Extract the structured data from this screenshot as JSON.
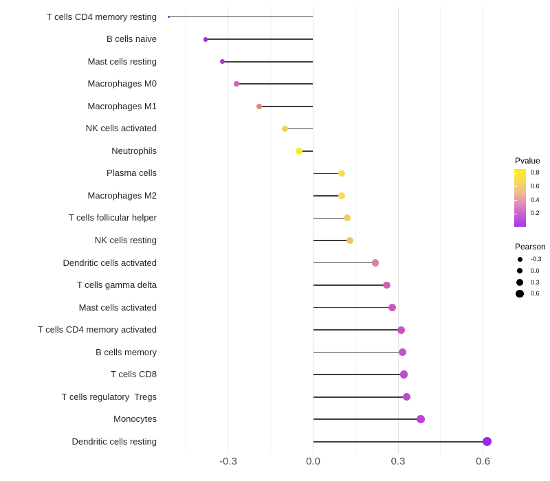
{
  "chart_data": {
    "type": "scatter",
    "variant": "lollipop",
    "title": "",
    "xlabel": "",
    "ylabel": "",
    "x_axis": {
      "ticks": [
        -0.3,
        0.0,
        0.3,
        0.6
      ],
      "tick_labels": [
        "-0.3",
        "0.0",
        "0.3",
        "0.6"
      ],
      "minor_ticks": [
        -0.45,
        -0.15,
        0.15,
        0.45
      ],
      "xlim": [
        -0.53,
        0.64
      ]
    },
    "grid": "vertical-only",
    "points": [
      {
        "label": "T cells CD4 memory resting",
        "pearson": -0.51,
        "pvalue_est": 0.02,
        "color": "#8A1FD4",
        "diameter": 3.6
      },
      {
        "label": "B cells naive",
        "pearson": -0.38,
        "pvalue_est": 0.07,
        "color": "#A92BD2",
        "diameter": 6.6
      },
      {
        "label": "Mast cells resting",
        "pearson": -0.32,
        "pvalue_est": 0.12,
        "color": "#B23BCD",
        "diameter": 7.4
      },
      {
        "label": "Macrophages M0",
        "pearson": -0.27,
        "pvalue_est": 0.3,
        "color": "#CC64AE",
        "diameter": 7.8
      },
      {
        "label": "Macrophages M1",
        "pearson": -0.19,
        "pvalue_est": 0.5,
        "color": "#DC8A7C",
        "diameter": 8.4
      },
      {
        "label": "NK cells activated",
        "pearson": -0.1,
        "pvalue_est": 0.7,
        "color": "#EFD257",
        "diameter": 9.0
      },
      {
        "label": "Neutrophils",
        "pearson": -0.05,
        "pvalue_est": 0.85,
        "color": "#F2EA2E",
        "diameter": 9.6
      },
      {
        "label": "Plasma cells",
        "pearson": 0.1,
        "pvalue_est": 0.78,
        "color": "#F5DC5E",
        "diameter": 9.8
      },
      {
        "label": "Macrophages M2",
        "pearson": 0.1,
        "pvalue_est": 0.78,
        "color": "#F5DB5C",
        "diameter": 9.8
      },
      {
        "label": "T cells follicular helper",
        "pearson": 0.12,
        "pvalue_est": 0.7,
        "color": "#F1CC63",
        "diameter": 10.0
      },
      {
        "label": "NK cells resting",
        "pearson": 0.13,
        "pvalue_est": 0.66,
        "color": "#EFC466",
        "diameter": 10.0
      },
      {
        "label": "Dendritic cells activated",
        "pearson": 0.22,
        "pvalue_est": 0.42,
        "color": "#DD7F9D",
        "diameter": 10.4
      },
      {
        "label": "T cells gamma delta",
        "pearson": 0.26,
        "pvalue_est": 0.28,
        "color": "#CB63B5",
        "diameter": 10.8
      },
      {
        "label": "Mast cells activated",
        "pearson": 0.28,
        "pvalue_est": 0.24,
        "color": "#C75ABD",
        "diameter": 11.0
      },
      {
        "label": "T cells CD4 memory activated",
        "pearson": 0.31,
        "pvalue_est": 0.2,
        "color": "#C355C5",
        "diameter": 11.2
      },
      {
        "label": "B cells memory",
        "pearson": 0.315,
        "pvalue_est": 0.19,
        "color": "#C152C7",
        "diameter": 11.2
      },
      {
        "label": "T cells CD8",
        "pearson": 0.32,
        "pvalue_est": 0.17,
        "color": "#BF4FC9",
        "diameter": 11.4
      },
      {
        "label": "T cells regulatory  Tregs",
        "pearson": 0.33,
        "pvalue_est": 0.16,
        "color": "#BD4CCB",
        "diameter": 11.4
      },
      {
        "label": "Monocytes",
        "pearson": 0.38,
        "pvalue_est": 0.12,
        "color": "#BB45D8",
        "diameter": 11.8
      },
      {
        "label": "Dendritic cells resting",
        "pearson": 0.615,
        "pvalue_est": 0.03,
        "color": "#9D27E8",
        "diameter": 13.4
      }
    ],
    "legend_position": "right",
    "color_legend": {
      "title": "Pvalue",
      "tick_labels": [
        "0.8",
        "0.6",
        "0.4",
        "0.2"
      ],
      "tick_values": [
        0.8,
        0.6,
        0.4,
        0.2
      ],
      "range": [
        0.004,
        0.858
      ],
      "gradient_top_to_bottom": [
        "#F9EC23",
        "#F7DC55",
        "#F3BD8B",
        "#DF8CB9",
        "#C55FD4",
        "#AB33EF"
      ]
    },
    "size_legend": {
      "title": "Pearson",
      "entries": [
        {
          "label": "-0.3",
          "diameter": 7.0
        },
        {
          "label": "0.0",
          "diameter": 8.5
        },
        {
          "label": "0.3",
          "diameter": 10.0
        },
        {
          "label": "0.6",
          "diameter": 11.5
        }
      ]
    },
    "stem_color": "#3d3d3d",
    "text_color_axis": "#4d4d4d",
    "text_color_labels": "#262626"
  }
}
